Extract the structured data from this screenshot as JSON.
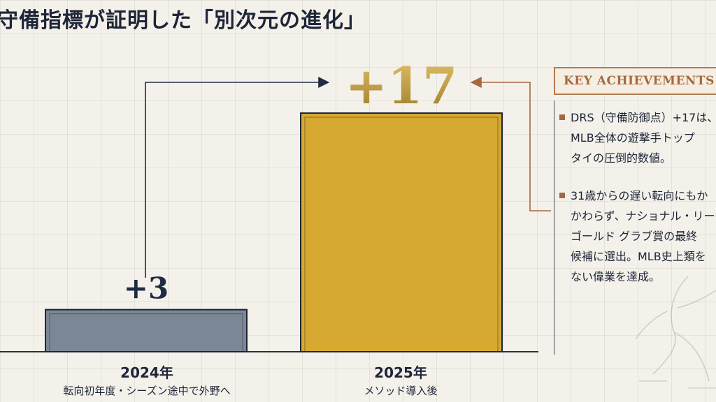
{
  "title": "守備指標が証明した「別次元の進化」",
  "chart_data": {
    "type": "bar",
    "categories": [
      "2024年",
      "2025年"
    ],
    "sublabels": [
      "転向初年度・シーズン途中で外野へ",
      "メソッド導入後"
    ],
    "values": [
      3,
      17
    ],
    "data_labels": [
      "+3",
      "+17"
    ],
    "colors": [
      "#7c8796",
      "#d6a931"
    ],
    "ylim": [
      0,
      17.5
    ]
  },
  "key": {
    "title": "KEY ACHIEVEMENTS",
    "bullets": [
      "DRS（守備防御点）+17は、\nMLB全体の遊撃手トップ\nタイの圧倒的数値。",
      "31歳からの遅い転向にもか\nかわらず、ナショナル・リーグ\nゴールド グラブ賞の最終\n候補に選出。MLB史上類を\nない偉業を達成。"
    ],
    "accent": "#a26a44"
  }
}
